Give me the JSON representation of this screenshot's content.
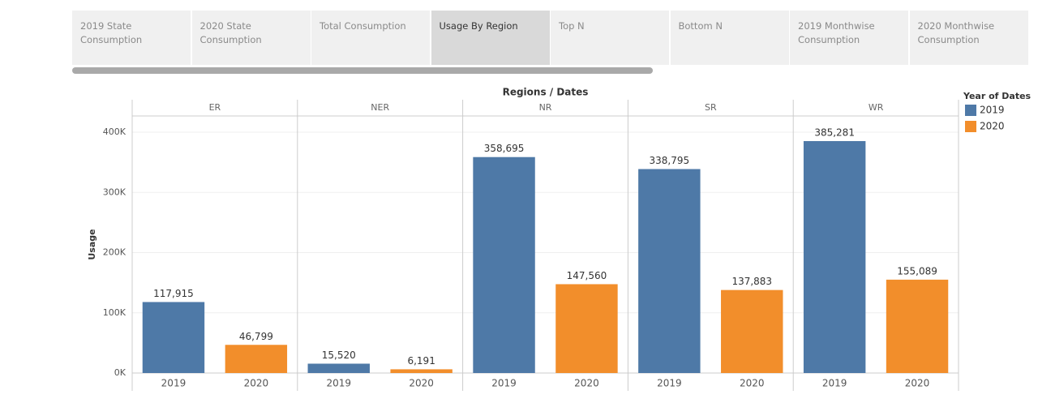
{
  "tabs": [
    "2019 State Consumption",
    "2020 State Consumption",
    "Total Consumption",
    "Usage By Region",
    "Top N",
    "Bottom N",
    "2019 Monthwise Consumption",
    "2020 Monthwise Consumption"
  ],
  "active_tab": 3,
  "chart_data": {
    "type": "bar",
    "title": "Regions / Dates",
    "y_label": "Usage",
    "categories": [
      "ER",
      "NER",
      "NR",
      "SR",
      "WR"
    ],
    "series": [
      {
        "name": "2019",
        "color": "#4e79a7",
        "values": [
          117915,
          15520,
          358695,
          338795,
          385281
        ],
        "value_labels": [
          "117,915",
          "15,520",
          "358,695",
          "338,795",
          "385,281"
        ]
      },
      {
        "name": "2020",
        "color": "#f28e2b",
        "values": [
          46799,
          6191,
          147560,
          137883,
          155089
        ],
        "value_labels": [
          "46,799",
          "6,191",
          "147,560",
          "137,883",
          "155,089"
        ]
      }
    ],
    "ylim": [
      0,
      427000
    ],
    "yticks": [
      {
        "value": 0,
        "label": "0K"
      },
      {
        "value": 100000,
        "label": "100K"
      },
      {
        "value": 200000,
        "label": "200K"
      },
      {
        "value": 300000,
        "label": "300K"
      },
      {
        "value": 400000,
        "label": "400K"
      }
    ],
    "grid": true,
    "legend_title": "Year of Dates",
    "legend": "top-right"
  }
}
